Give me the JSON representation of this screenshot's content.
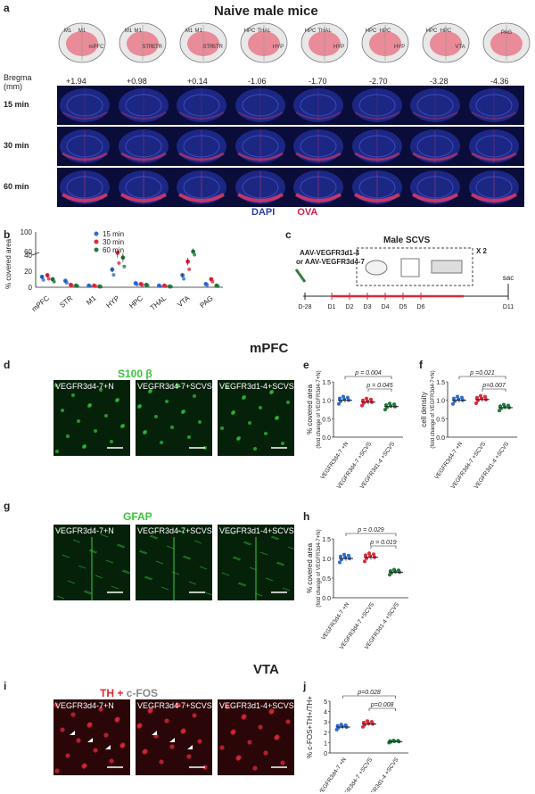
{
  "panel_a": {
    "letter": "a",
    "title": "Naive male mice",
    "atlas": [
      {
        "regions": [
          "M1",
          "M1",
          "mPFC"
        ]
      },
      {
        "regions": [
          "M1",
          "M1",
          "STR",
          "STR"
        ]
      },
      {
        "regions": [
          "M1",
          "M1",
          "STR",
          "STR"
        ]
      },
      {
        "regions": [
          "HPC",
          "THAL",
          "HYP"
        ]
      },
      {
        "regions": [
          "HPC",
          "THAL",
          "HYP"
        ]
      },
      {
        "regions": [
          "HPC",
          "HPC",
          "HYP"
        ]
      },
      {
        "regions": [
          "HPC",
          "HPC",
          "VTA"
        ]
      },
      {
        "regions": [
          "PAG"
        ]
      }
    ],
    "bregma_label": "Bregma",
    "bregma_unit": "(mm)",
    "bregma_values": [
      "+1.94",
      "+0.98",
      "+0.14",
      "-1.06",
      "-1.70",
      "-2.70",
      "-3.28",
      "-4.36"
    ],
    "rows": [
      "15 min",
      "30 min",
      "60 min"
    ],
    "legend_dapi": "DAPI",
    "legend_ova": "OVA"
  },
  "panel_b": {
    "letter": "b",
    "chart_data": {
      "type": "scatter",
      "ylabel": "% covered area",
      "categories": [
        "mPFC",
        "STR",
        "M1",
        "HYP",
        "HPC",
        "THAL",
        "VTA",
        "PAG"
      ],
      "yticks_low": [
        "0",
        "20",
        "40"
      ],
      "yticks_high": [
        "60",
        "100"
      ],
      "series": [
        {
          "name": "15 min",
          "color": "#2d6cd3",
          "values": [
            13,
            8,
            2,
            22,
            5,
            2,
            15,
            4
          ]
        },
        {
          "name": "30 min",
          "color": "#e0283a",
          "values": [
            15,
            3,
            2,
            43,
            4,
            2,
            32,
            10
          ]
        },
        {
          "name": "60 min",
          "color": "#1e7a3a",
          "values": [
            10,
            2,
            1,
            37,
            3,
            1,
            58,
            2
          ]
        }
      ]
    }
  },
  "panel_c": {
    "letter": "c",
    "virus1": "AAV-VEGFR3d1-4",
    "virus_or": "or AAV-VEGFR3d4-7",
    "protocol": "Male SCVS",
    "repeat": "X 2",
    "days": [
      "D-28",
      "D1",
      "D2",
      "D3",
      "D4",
      "D5",
      "D6",
      "D11"
    ],
    "sac": "sac"
  },
  "mpfc_header": "mPFC",
  "panel_d": {
    "letter": "d",
    "stain": "S100 β",
    "conditions": [
      "VEGFR3d4-7+N",
      "VEGFR3d4-7+SCVS",
      "VEGFR3d1-4+SCVS"
    ]
  },
  "panel_e": {
    "letter": "e",
    "ylabel": "% covered area",
    "ysub": "(fold change of VEGFR3d4-7+N)",
    "yticks": [
      "0.0",
      "0.5",
      "1.0",
      "1.5"
    ],
    "p1": "p = 0.004",
    "p2": "p = 0.045",
    "xlabels": [
      "VEGFR3d4-7 +N",
      "VEGFR3d4-7 +SCVS",
      "VEGFR3d1-4 +SCVS"
    ],
    "chart_data": {
      "type": "scatter",
      "categories": [
        "VEGFR3d4-7+N",
        "VEGFR3d4-7+SCVS",
        "VEGFR3d1-4+SCVS"
      ],
      "means": [
        1.0,
        0.95,
        0.83
      ]
    }
  },
  "panel_f": {
    "letter": "f",
    "ylabel": "cell density",
    "ysub": "(fold change of VEGFR3d4-7+N)",
    "yticks": [
      "0.0",
      "0.5",
      "1.0",
      "1.5"
    ],
    "p1": "p =0.021",
    "p2": "p=0.007",
    "xlabels": [
      "VEGFR3d4-7 +N",
      "VEGFR3d4-7 +SCVS",
      "VEGFR3d1-4 +SCVS"
    ],
    "chart_data": {
      "type": "scatter",
      "categories": [
        "VEGFR3d4-7+N",
        "VEGFR3d4-7+SCVS",
        "VEGFR3d1-4+SCVS"
      ],
      "means": [
        1.0,
        1.02,
        0.8
      ]
    }
  },
  "panel_g": {
    "letter": "g",
    "stain": "GFAP",
    "conditions": [
      "VEGFR3d4-7+N",
      "VEGFR3d4-7+SCVS",
      "VEGFR3d1-4+SCVS"
    ]
  },
  "panel_h": {
    "letter": "h",
    "ylabel": "% covered area",
    "ysub": "(fold change of VEGFR3d4-7+N)",
    "yticks": [
      "0.0",
      "0.5",
      "1.0",
      "1.5"
    ],
    "p1": "p = 0.029",
    "p2": "p = 0.019",
    "xlabels": [
      "VEGFR3d4-7 +N",
      "VEGFR3d4-7 +SCVS",
      "VEGFR3d1-4 +SCVS"
    ],
    "chart_data": {
      "type": "scatter",
      "categories": [
        "VEGFR3d4-7+N",
        "VEGFR3d4-7+SCVS",
        "VEGFR3d1-4+SCVS"
      ],
      "means": [
        1.0,
        1.03,
        0.65
      ]
    }
  },
  "vta_header": "VTA",
  "panel_i": {
    "letter": "i",
    "stain_th": "TH",
    "stain_plus": " + ",
    "stain_cfos": "c-FOS",
    "conditions": [
      "VEGFR3d4-7+N",
      "VEGFR3d4-7+SCVS",
      "VEGFR3d1-4+SCVS"
    ]
  },
  "panel_j": {
    "letter": "j",
    "ylabel": "% c-FOS+TH+/TH+",
    "yticks": [
      "0",
      "1",
      "2",
      "3",
      "4",
      "5"
    ],
    "p1": "p=0.028",
    "p2": "p=0.008",
    "xlabels": [
      "VEGFR3d4-7 +N",
      "VEGFR3d4-7 +SCVS",
      "VEGFR3d1-4 +SCVS"
    ],
    "chart_data": {
      "type": "scatter",
      "categories": [
        "VEGFR3d4-7+N",
        "VEGFR3d4-7+SCVS",
        "VEGFR3d1-4+SCVS"
      ],
      "means": [
        2.5,
        2.8,
        1.1
      ]
    }
  }
}
